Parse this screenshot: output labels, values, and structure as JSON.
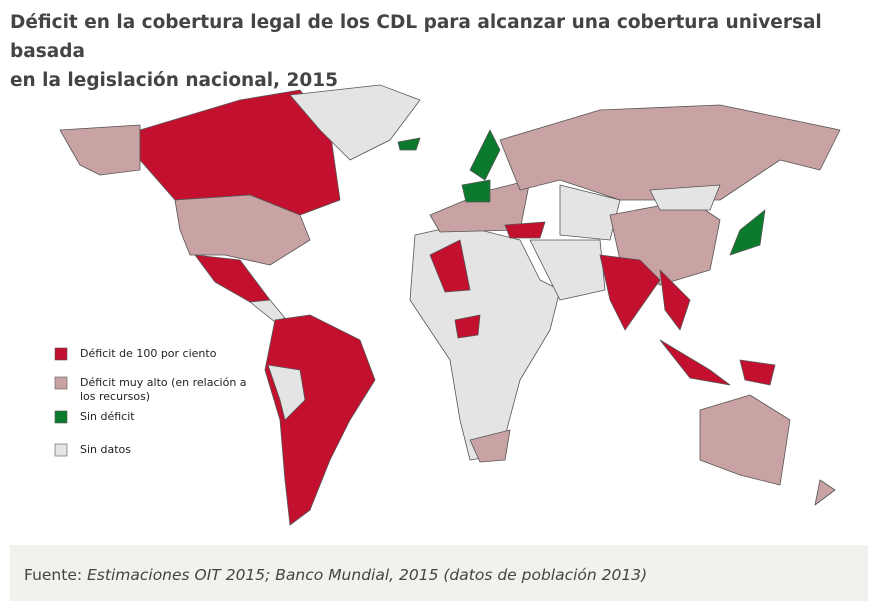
{
  "header": {
    "title_line1": "Déficit en la cobertura legal de los CDL para alcanzar una cobertura universal basada",
    "title_line2": "en la legislación nacional, 2015"
  },
  "legend": [
    {
      "label": "Déficit de 100 por ciento",
      "color": "#c4102f"
    },
    {
      "label": "Déficit muy alto (en relación a",
      "label2": "los recursos)",
      "color": "#c9a3a3"
    },
    {
      "label": "Sin déficit",
      "color": "#0b7a2c"
    },
    {
      "label": "Sin datos",
      "color": "#e4e4e4"
    }
  ],
  "footer": {
    "prefix": "Fuente: ",
    "source": "Estimaciones OIT 2015; Banco Mundial, 2015 (datos de población 2013)"
  }
}
